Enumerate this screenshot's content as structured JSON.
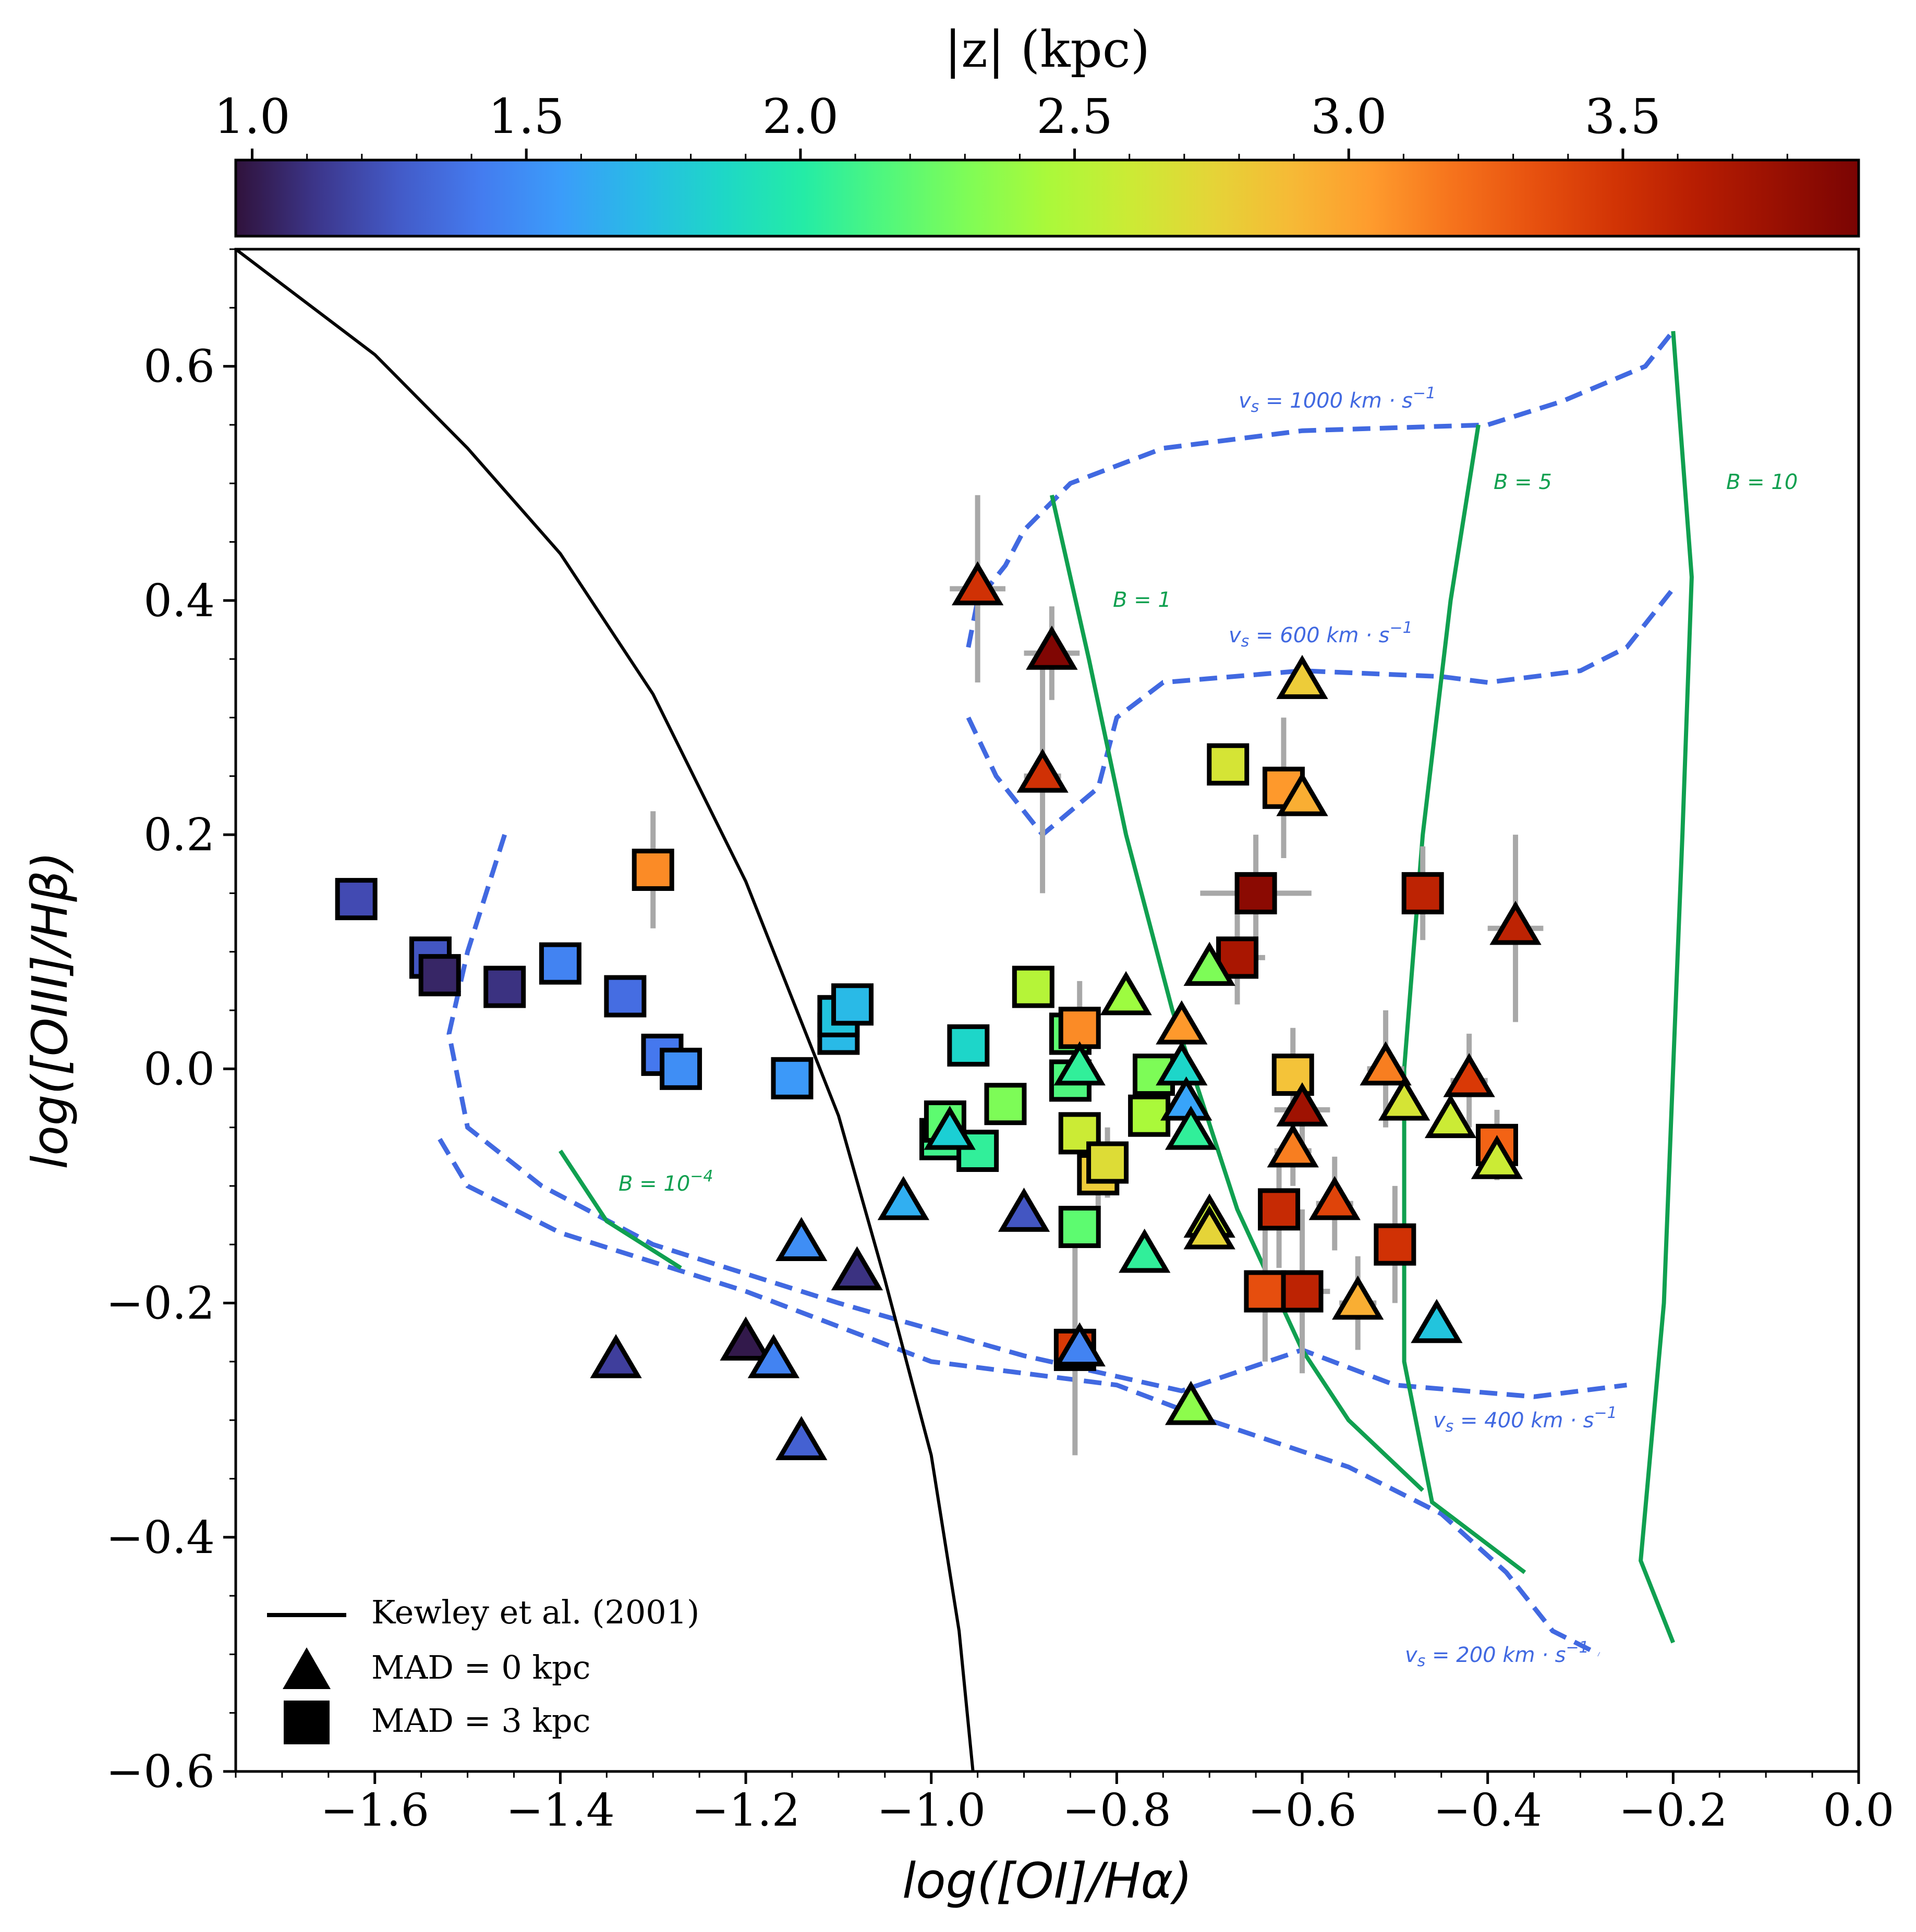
{
  "chart_data": {
    "type": "scatter",
    "title": "",
    "xlabel": "log([OI]/Hα)",
    "ylabel": "log([OIII]/Hβ)",
    "xlim": [
      -1.75,
      0.0
    ],
    "ylim": [
      -0.6,
      0.7
    ],
    "x_ticks": [
      -1.6,
      -1.4,
      -1.2,
      -1.0,
      -0.8,
      -0.6,
      -0.4,
      -0.2,
      0.0
    ],
    "x_tick_labels": [
      "−1.6",
      "−1.4",
      "−1.2",
      "−1.0",
      "−0.8",
      "−0.6",
      "−0.4",
      "−0.2",
      "0.0"
    ],
    "y_ticks": [
      -0.6,
      -0.4,
      -0.2,
      0.0,
      0.2,
      0.4,
      0.6
    ],
    "y_tick_labels": [
      "−0.6",
      "−0.4",
      "−0.2",
      "0.0",
      "0.2",
      "0.4",
      "0.6"
    ],
    "colorbar": {
      "label": "|z| (kpc)",
      "range": [
        0.97,
        3.93
      ],
      "ticks": [
        1.0,
        1.5,
        2.0,
        2.5,
        3.0,
        3.5
      ],
      "tick_labels": [
        "1.0",
        "1.5",
        "2.0",
        "2.5",
        "3.0",
        "3.5"
      ],
      "colormap": "turbo"
    },
    "legend": {
      "position": "lower-left",
      "entries": [
        {
          "kind": "line",
          "label": "Kewley et al. (2001)"
        },
        {
          "kind": "triangle",
          "label": "MAD = 0 kpc"
        },
        {
          "kind": "square",
          "label": "MAD = 3 kpc"
        }
      ]
    },
    "kewley_line": {
      "name": "Kewley et al. (2001)",
      "points": [
        [
          -1.75,
          0.7
        ],
        [
          -1.6,
          0.61
        ],
        [
          -1.5,
          0.53
        ],
        [
          -1.4,
          0.44
        ],
        [
          -1.3,
          0.32
        ],
        [
          -1.2,
          0.16
        ],
        [
          -1.1,
          -0.04
        ],
        [
          -1.05,
          -0.18
        ],
        [
          -1.0,
          -0.33
        ],
        [
          -0.97,
          -0.48
        ],
        [
          -0.955,
          -0.6
        ]
      ]
    },
    "shock_grid": {
      "velocity_curves": [
        {
          "label": "v_s = 1000 km·s⁻¹",
          "points": [
            [
              -0.96,
              0.36
            ],
            [
              -0.95,
              0.4
            ],
            [
              -0.92,
              0.43
            ],
            [
              -0.9,
              0.46
            ],
            [
              -0.85,
              0.5
            ],
            [
              -0.75,
              0.53
            ],
            [
              -0.6,
              0.545
            ],
            [
              -0.4,
              0.55
            ],
            [
              -0.32,
              0.57
            ],
            [
              -0.23,
              0.6
            ],
            [
              -0.2,
              0.63
            ]
          ]
        },
        {
          "label": "v_s = 600 km·s⁻¹",
          "points": [
            [
              -0.96,
              0.3
            ],
            [
              -0.93,
              0.25
            ],
            [
              -0.88,
              0.2
            ],
            [
              -0.82,
              0.24
            ],
            [
              -0.8,
              0.3
            ],
            [
              -0.75,
              0.33
            ],
            [
              -0.6,
              0.34
            ],
            [
              -0.45,
              0.335
            ],
            [
              -0.4,
              0.33
            ],
            [
              -0.3,
              0.34
            ],
            [
              -0.25,
              0.36
            ],
            [
              -0.2,
              0.41
            ]
          ]
        },
        {
          "label": "v_s = 400 km·s⁻¹",
          "points": [
            [
              -1.46,
              0.2
            ],
            [
              -1.5,
              0.1
            ],
            [
              -1.52,
              0.03
            ],
            [
              -1.5,
              -0.05
            ],
            [
              -1.42,
              -0.1
            ],
            [
              -1.3,
              -0.15
            ],
            [
              -1.1,
              -0.2
            ],
            [
              -0.9,
              -0.245
            ],
            [
              -0.73,
              -0.275
            ],
            [
              -0.6,
              -0.24
            ],
            [
              -0.5,
              -0.27
            ],
            [
              -0.35,
              -0.28
            ],
            [
              -0.25,
              -0.27
            ]
          ]
        },
        {
          "label": "v_s = 200 km·s⁻¹",
          "points": [
            [
              -1.53,
              -0.06
            ],
            [
              -1.5,
              -0.1
            ],
            [
              -1.4,
              -0.14
            ],
            [
              -1.2,
              -0.19
            ],
            [
              -1.0,
              -0.25
            ],
            [
              -0.8,
              -0.27
            ],
            [
              -0.7,
              -0.3
            ],
            [
              -0.55,
              -0.34
            ],
            [
              -0.45,
              -0.38
            ],
            [
              -0.38,
              -0.43
            ],
            [
              -0.33,
              -0.48
            ],
            [
              -0.28,
              -0.5
            ]
          ]
        }
      ],
      "field_curves": [
        {
          "label": "B = 10⁻⁴",
          "points": [
            [
              -1.4,
              -0.07
            ],
            [
              -1.35,
              -0.13
            ],
            [
              -1.27,
              -0.17
            ]
          ]
        },
        {
          "label": "B = 1",
          "points": [
            [
              -0.87,
              0.49
            ],
            [
              -0.83,
              0.35
            ],
            [
              -0.79,
              0.2
            ],
            [
              -0.74,
              0.05
            ],
            [
              -0.67,
              -0.12
            ],
            [
              -0.6,
              -0.24
            ],
            [
              -0.55,
              -0.3
            ],
            [
              -0.47,
              -0.36
            ]
          ]
        },
        {
          "label": "B = 5",
          "points": [
            [
              -0.41,
              0.55
            ],
            [
              -0.44,
              0.4
            ],
            [
              -0.47,
              0.2
            ],
            [
              -0.49,
              0.0
            ],
            [
              -0.49,
              -0.25
            ],
            [
              -0.46,
              -0.37
            ],
            [
              -0.36,
              -0.43
            ]
          ]
        },
        {
          "label": "B = 10",
          "points": [
            [
              -0.2,
              0.63
            ],
            [
              -0.18,
              0.42
            ],
            [
              -0.19,
              0.2
            ],
            [
              -0.2,
              0.0
            ],
            [
              -0.21,
              -0.2
            ],
            [
              -0.235,
              -0.42
            ],
            [
              -0.2,
              -0.49
            ]
          ]
        }
      ]
    },
    "series": [
      {
        "name": "MAD = 3 kpc",
        "marker": "square",
        "points": [
          {
            "x": -1.62,
            "y": 0.145,
            "z": 1.2
          },
          {
            "x": -1.54,
            "y": 0.095,
            "z": 1.25
          },
          {
            "x": -1.53,
            "y": 0.08,
            "z": 1.05
          },
          {
            "x": -1.46,
            "y": 0.07,
            "z": 1.1
          },
          {
            "x": -1.4,
            "y": 0.09,
            "z": 1.45
          },
          {
            "x": -1.33,
            "y": 0.062,
            "z": 1.35
          },
          {
            "x": -1.29,
            "y": 0.012,
            "z": 1.4
          },
          {
            "x": -1.27,
            "y": 0.0,
            "z": 1.5
          },
          {
            "x": -1.3,
            "y": 0.17,
            "z": 3.1,
            "xerr": 0.02,
            "yerr": 0.05
          },
          {
            "x": -1.15,
            "y": -0.008,
            "z": 1.55
          },
          {
            "x": -1.1,
            "y": 0.03,
            "z": 1.7
          },
          {
            "x": -1.1,
            "y": 0.045,
            "z": 1.75
          },
          {
            "x": -1.085,
            "y": 0.055,
            "z": 1.7
          },
          {
            "x": -0.96,
            "y": 0.02,
            "z": 1.85
          },
          {
            "x": -0.99,
            "y": -0.06,
            "z": 2.1
          },
          {
            "x": -0.985,
            "y": -0.045,
            "z": 2.2
          },
          {
            "x": -0.95,
            "y": -0.07,
            "z": 2.05
          },
          {
            "x": -0.92,
            "y": -0.03,
            "z": 2.3
          },
          {
            "x": -0.89,
            "y": 0.07,
            "z": 2.5
          },
          {
            "x": -0.85,
            "y": 0.03,
            "z": 2.2
          },
          {
            "x": -0.84,
            "y": 0.035,
            "z": 3.1,
            "xerr": 0.02,
            "yerr": 0.04
          },
          {
            "x": -0.85,
            "y": -0.01,
            "z": 2.15
          },
          {
            "x": -0.84,
            "y": -0.055,
            "z": 2.6
          },
          {
            "x": -0.82,
            "y": -0.09,
            "z": 2.8,
            "xerr": 0.02,
            "yerr": 0.03
          },
          {
            "x": -0.81,
            "y": -0.08,
            "z": 2.7,
            "xerr": 0.02,
            "yerr": 0.03
          },
          {
            "x": -0.84,
            "y": -0.135,
            "z": 2.2
          },
          {
            "x": -0.845,
            "y": -0.24,
            "z": 3.45,
            "xerr": 0.02,
            "yerr": 0.09
          },
          {
            "x": -0.76,
            "y": -0.005,
            "z": 2.3
          },
          {
            "x": -0.765,
            "y": -0.04,
            "z": 2.45
          },
          {
            "x": -0.68,
            "y": 0.26,
            "z": 2.65
          },
          {
            "x": -0.62,
            "y": 0.24,
            "z": 3.05,
            "xerr": 0.02,
            "yerr": 0.06
          },
          {
            "x": -0.65,
            "y": 0.15,
            "z": 3.85,
            "xerr": 0.06,
            "yerr": 0.05
          },
          {
            "x": -0.67,
            "y": 0.095,
            "z": 3.7,
            "xerr": 0.03,
            "yerr": 0.04
          },
          {
            "x": -0.61,
            "y": -0.005,
            "z": 2.85,
            "xerr": 0.02,
            "yerr": 0.04
          },
          {
            "x": -0.625,
            "y": -0.12,
            "z": 3.55,
            "xerr": 0.02,
            "yerr": 0.05
          },
          {
            "x": -0.64,
            "y": -0.19,
            "z": 3.35,
            "xerr": 0.02,
            "yerr": 0.06
          },
          {
            "x": -0.6,
            "y": -0.19,
            "z": 3.6,
            "xerr": 0.03,
            "yerr": 0.07
          },
          {
            "x": -0.5,
            "y": -0.15,
            "z": 3.5,
            "xerr": 0.02,
            "yerr": 0.05
          },
          {
            "x": -0.47,
            "y": 0.15,
            "z": 3.6,
            "xerr": 0.02,
            "yerr": 0.04
          },
          {
            "x": -0.39,
            "y": -0.065,
            "z": 3.25,
            "xerr": 0.02,
            "yerr": 0.03
          }
        ]
      },
      {
        "name": "MAD = 0 kpc",
        "marker": "triangle",
        "points": [
          {
            "x": -1.34,
            "y": -0.25,
            "z": 1.15
          },
          {
            "x": -1.2,
            "y": -0.235,
            "z": 1.0
          },
          {
            "x": -1.17,
            "y": -0.25,
            "z": 1.45
          },
          {
            "x": -1.14,
            "y": -0.32,
            "z": 1.3
          },
          {
            "x": -1.14,
            "y": -0.15,
            "z": 1.5
          },
          {
            "x": -1.08,
            "y": -0.175,
            "z": 1.1
          },
          {
            "x": -1.03,
            "y": -0.115,
            "z": 1.65
          },
          {
            "x": -0.98,
            "y": -0.055,
            "z": 1.8
          },
          {
            "x": -0.95,
            "y": 0.41,
            "z": 3.5,
            "xerr": 0.03,
            "yerr": 0.08
          },
          {
            "x": -0.87,
            "y": 0.355,
            "z": 3.9,
            "xerr": 0.03,
            "yerr": 0.04
          },
          {
            "x": -0.88,
            "y": 0.25,
            "z": 3.5,
            "xerr": 0.02,
            "yerr": 0.1
          },
          {
            "x": -0.9,
            "y": -0.125,
            "z": 1.25
          },
          {
            "x": -0.84,
            "y": -0.0,
            "z": 2.05
          },
          {
            "x": -0.84,
            "y": -0.24,
            "z": 1.45
          },
          {
            "x": -0.79,
            "y": 0.06,
            "z": 2.4
          },
          {
            "x": -0.77,
            "y": -0.16,
            "z": 2.05
          },
          {
            "x": -0.73,
            "y": 0.035,
            "z": 3.05
          },
          {
            "x": -0.73,
            "y": 0.0,
            "z": 1.85
          },
          {
            "x": -0.725,
            "y": -0.03,
            "z": 1.6
          },
          {
            "x": -0.72,
            "y": -0.055,
            "z": 2.05
          },
          {
            "x": -0.7,
            "y": 0.085,
            "z": 2.3
          },
          {
            "x": -0.7,
            "y": -0.13,
            "z": 2.6
          },
          {
            "x": -0.7,
            "y": -0.14,
            "z": 2.75
          },
          {
            "x": -0.72,
            "y": -0.29,
            "z": 2.35
          },
          {
            "x": -0.6,
            "y": 0.33,
            "z": 2.8
          },
          {
            "x": -0.6,
            "y": 0.23,
            "z": 2.95
          },
          {
            "x": -0.6,
            "y": -0.035,
            "z": 3.75,
            "xerr": 0.03,
            "yerr": 0.04
          },
          {
            "x": -0.61,
            "y": -0.07,
            "z": 3.15,
            "xerr": 0.02,
            "yerr": 0.03
          },
          {
            "x": -0.565,
            "y": -0.115,
            "z": 3.4,
            "xerr": 0.02,
            "yerr": 0.04
          },
          {
            "x": -0.54,
            "y": -0.2,
            "z": 2.95,
            "xerr": 0.02,
            "yerr": 0.04
          },
          {
            "x": -0.51,
            "y": 0.0,
            "z": 3.15,
            "xerr": 0.02,
            "yerr": 0.05
          },
          {
            "x": -0.49,
            "y": -0.03,
            "z": 2.65
          },
          {
            "x": -0.44,
            "y": -0.045,
            "z": 2.6
          },
          {
            "x": -0.42,
            "y": -0.01,
            "z": 3.45,
            "xerr": 0.02,
            "yerr": 0.04
          },
          {
            "x": -0.455,
            "y": -0.22,
            "z": 1.75
          },
          {
            "x": -0.39,
            "y": -0.08,
            "z": 2.6
          },
          {
            "x": -0.37,
            "y": 0.12,
            "z": 3.6,
            "xerr": 0.03,
            "yerr": 0.08
          }
        ]
      }
    ]
  }
}
